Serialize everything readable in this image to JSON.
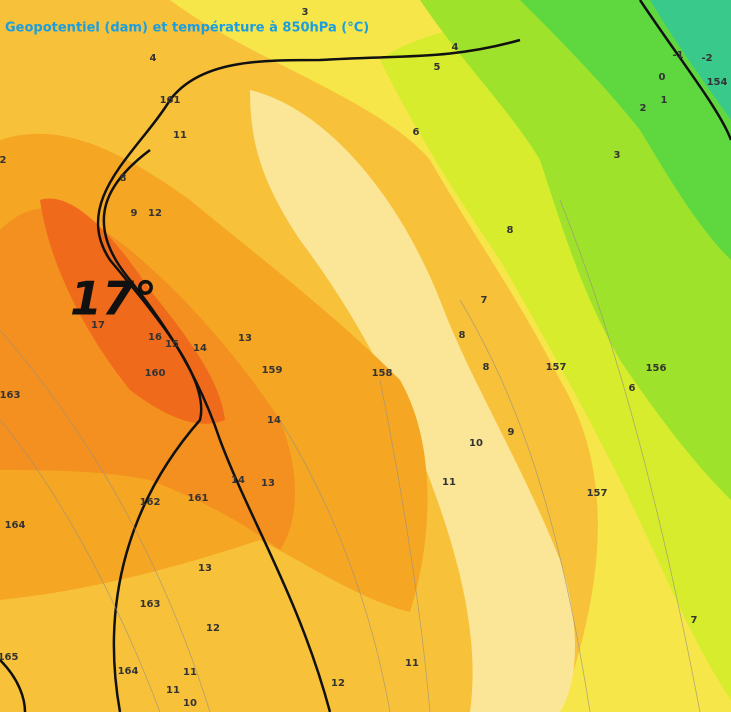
{
  "title": "Geopotentiel (dam) et température à 850hPa (°C)",
  "highlight": "17°",
  "labels": [
    "4",
    "161",
    "11",
    "8",
    "9",
    "12",
    "2",
    "17",
    "16",
    "15",
    "14",
    "13",
    "160",
    "159",
    "158",
    "163",
    "14",
    "14",
    "13",
    "162",
    "161",
    "164",
    "13",
    "163",
    "12",
    "165",
    "164",
    "11",
    "11",
    "10",
    "12",
    "11",
    "11",
    "10",
    "9",
    "8",
    "8",
    "7",
    "8",
    "6",
    "5",
    "4",
    "3",
    "157",
    "156",
    "6",
    "157",
    "7",
    "3",
    "2",
    "1",
    "0",
    "-1",
    "-2",
    "154"
  ]
}
